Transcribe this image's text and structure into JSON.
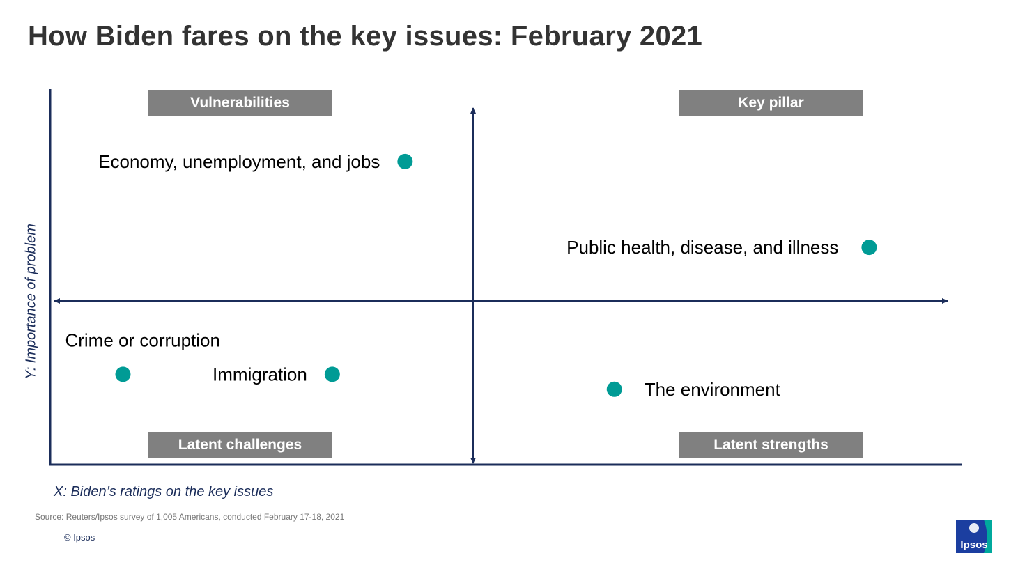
{
  "title": "How Biden fares on the key issues: February 2021",
  "quadrants": {
    "top_left": "Vulnerabilities",
    "top_right": "Key pillar",
    "bottom_left": "Latent challenges",
    "bottom_right": "Latent strengths"
  },
  "axes": {
    "x_label": "X: Biden’s ratings on the key issues",
    "y_label": "Y: Importance of problem"
  },
  "source": "Source: Reuters/Ipsos survey of 1,005 Americans, conducted February 17-18, 2021",
  "copyright": "© Ipsos",
  "logo_text": "Ipsos",
  "colors": {
    "point": "#009b95",
    "axis": "#1b2d5a",
    "quadrant_box": "#808080",
    "logo": "#1b3ea0",
    "logo_accent": "#00a99d"
  },
  "chart_data": {
    "type": "scatter",
    "title": "How Biden fares on the key issues: February 2021",
    "xlabel": "X: Biden’s ratings on the key issues",
    "ylabel": "Y: Importance of problem",
    "xlim": [
      0,
      100
    ],
    "ylim": [
      0,
      100
    ],
    "grid": false,
    "points": [
      {
        "label": "Economy, unemployment, and jobs",
        "x": 39,
        "y": 81
      },
      {
        "label": "Public health, disease, and illness",
        "x": 90,
        "y": 58
      },
      {
        "label": "Crime or corruption",
        "x": 8,
        "y": 24
      },
      {
        "label": "Immigration",
        "x": 31,
        "y": 24
      },
      {
        "label": "The environment",
        "x": 62,
        "y": 20
      }
    ]
  }
}
